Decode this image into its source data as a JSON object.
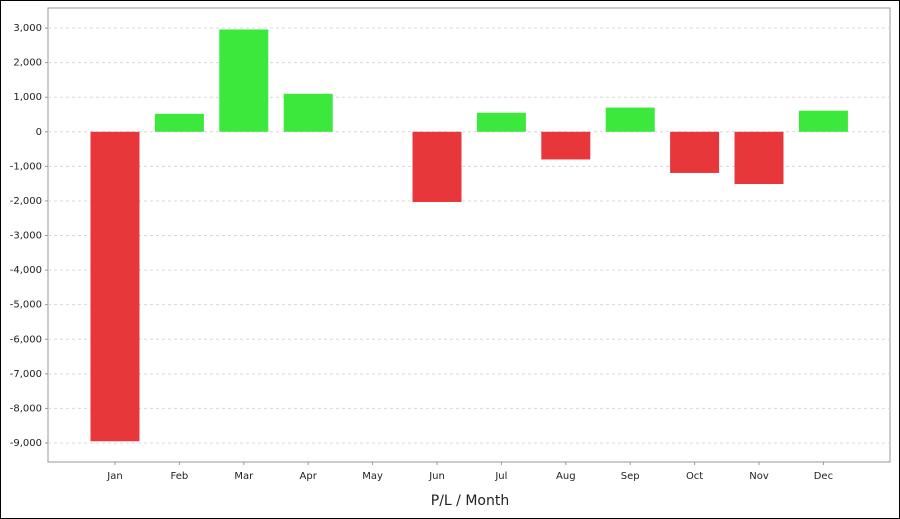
{
  "chart_data": {
    "type": "bar",
    "x_label": "P/L / Month",
    "categories": [
      "Jan",
      "Feb",
      "Mar",
      "Apr",
      "May",
      "Jun",
      "Jul",
      "Aug",
      "Sep",
      "Oct",
      "Nov",
      "Dec"
    ],
    "values": [
      -8950,
      520,
      2960,
      1100,
      0,
      -2030,
      550,
      -800,
      700,
      -1190,
      -1510,
      610
    ],
    "positive_color": "#3de83d",
    "negative_color": "#e8373b",
    "ylim": [
      -9550,
      3580
    ],
    "yticks": [
      {
        "value": 3000,
        "label": "3,000"
      },
      {
        "value": 2000,
        "label": "2,000"
      },
      {
        "value": 1000,
        "label": "1,000"
      },
      0,
      {
        "value": -1000,
        "label": "-1,000"
      },
      {
        "value": -2000,
        "label": "-2,000"
      },
      {
        "value": -3000,
        "label": "-3,000"
      },
      {
        "value": -4000,
        "label": "-4,000"
      },
      {
        "value": -5000,
        "label": "-5,000"
      },
      {
        "value": -6000,
        "label": "-6,000"
      },
      {
        "value": -7000,
        "label": "-7,000"
      },
      {
        "value": -8000,
        "label": "-8,000"
      },
      {
        "value": -9000,
        "label": "-9,000"
      }
    ],
    "grid": true
  }
}
